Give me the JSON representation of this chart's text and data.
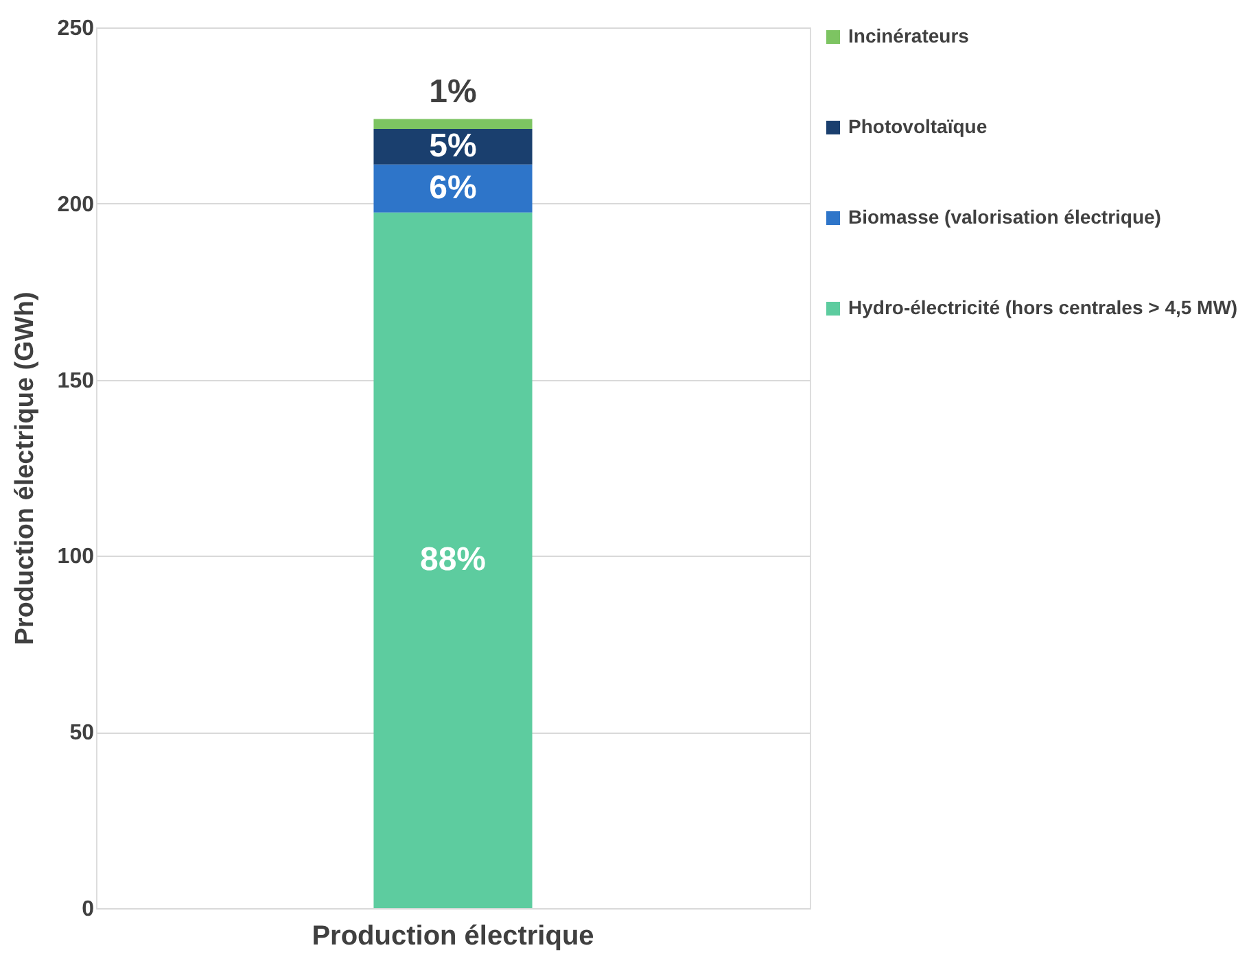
{
  "chart_data": {
    "type": "bar",
    "stacked": true,
    "categories": [
      "Production électrique"
    ],
    "ylabel": "Production électrique (GWh)",
    "ylim": [
      0,
      250
    ],
    "yticks": [
      0,
      50,
      100,
      150,
      200,
      250
    ],
    "grid": "y",
    "legend": "right",
    "series": [
      {
        "name": "Hydro-électricité (hors centrales > 4,5 MW)",
        "color": "#5dcc9f",
        "values": [
          197.5
        ]
      },
      {
        "name": "Biomasse (valorisation électrique)",
        "color": "#2e75c9",
        "values": [
          13.6
        ]
      },
      {
        "name": "Photovoltaïque",
        "color": "#1a3f6e",
        "values": [
          10.1
        ]
      },
      {
        "name": "Incinérateurs",
        "color": "#7dc462",
        "values": [
          2.8
        ]
      }
    ],
    "annotations": [
      "88%",
      "6%",
      "5%",
      "1%"
    ]
  }
}
